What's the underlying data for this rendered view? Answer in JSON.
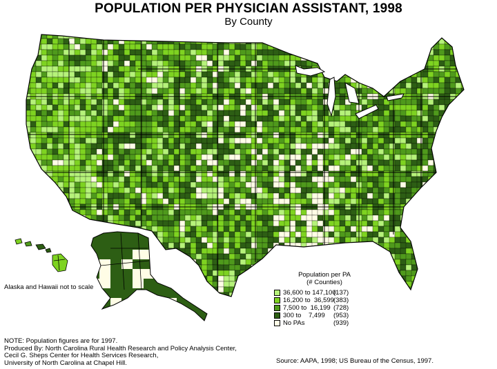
{
  "header": {
    "title": "POPULATION PER PHYSICIAN ASSISTANT, 1998",
    "subtitle": "By County"
  },
  "map": {
    "region": "United States counties, including Alaska and Hawaii insets",
    "scale_note": "Alaska and Hawaii not to scale",
    "colors": {
      "class_1": "#b6f27a",
      "class_2": "#7ed321",
      "class_3": "#4f9a1c",
      "class_4": "#2d5e14",
      "no_pa": "#fffde6",
      "border": "#000000"
    }
  },
  "legend": {
    "title_line1": "Population per PA",
    "title_line2": "(# Counties)",
    "items": [
      {
        "range": "36,600 to 147,100",
        "count": "(137)",
        "color": "#b6f27a"
      },
      {
        "range": "16,200 to  36,599",
        "count": "(383)",
        "color": "#7ed321"
      },
      {
        "range": "7,500 to  16,199",
        "count": "(728)",
        "color": "#4f9a1c"
      },
      {
        "range": "300 to    7,499",
        "count": "(953)",
        "color": "#2d5e14"
      },
      {
        "range": "No PAs",
        "count": "(939)",
        "color": "#fffde6"
      }
    ]
  },
  "notes": {
    "line1": "NOTE: Population figures are for 1997.",
    "line2": "Produced By:  North Carolina Rural Health Research and Policy Analysis Center,",
    "line3": "Cecil G. Sheps Center for Health Services Research,",
    "line4": "University of North Carolina at Chapel Hill."
  },
  "source": "Source:  AAPA, 1998;  US Bureau of the Census, 1997."
}
